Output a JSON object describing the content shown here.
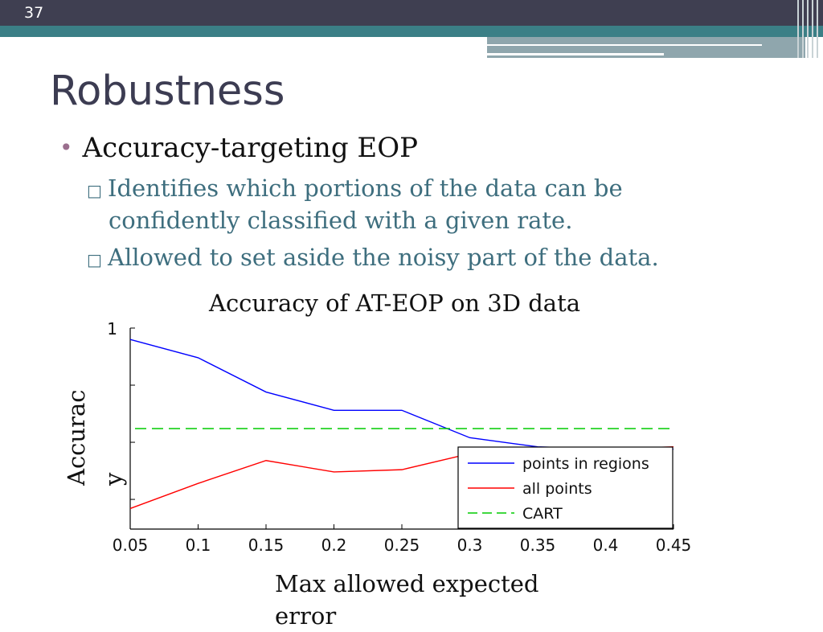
{
  "slide": {
    "number": "37",
    "title": "Robustness",
    "bullet": "Accuracy-targeting EOP",
    "subbullets": [
      "Identifies which portions of the data can be",
      "confidently classified with a given rate.",
      "Allowed to set aside the noisy part of the data."
    ]
  },
  "colors": {
    "banner": "#3f3f51",
    "accent_teal": "#3b7f86",
    "title": "#3c3c52",
    "subbullet": "#3e6e7e"
  },
  "chart_data": {
    "type": "line",
    "title": "Accuracy of AT-EOP on 3D data",
    "xlabel": "Max allowed expected error",
    "ylabel": "Accuracy",
    "x": [
      0.05,
      0.1,
      0.15,
      0.2,
      0.25,
      0.3,
      0.35,
      0.4,
      0.45
    ],
    "x_tick_labels": [
      "0.05",
      "0.1",
      "0.15",
      "0.2",
      "0.25",
      "0.3",
      "0.35",
      "0.4",
      "0.45"
    ],
    "y_tick_labels": [
      "1"
    ],
    "xlim": [
      0.05,
      0.45
    ],
    "series": [
      {
        "name": "points in regions",
        "color": "#0000ff",
        "style": "solid",
        "values": [
          0.95,
          0.87,
          0.72,
          0.64,
          0.64,
          0.52,
          0.48,
          0.47,
          0.47
        ]
      },
      {
        "name": "all points",
        "color": "#ff0000",
        "style": "solid",
        "values": [
          0.21,
          0.32,
          0.42,
          0.37,
          0.38,
          0.45,
          0.47,
          0.47,
          0.48
        ]
      },
      {
        "name": "CART",
        "color": "#00cc00",
        "style": "dashed",
        "values": [
          0.56,
          0.56,
          0.56,
          0.56,
          0.56,
          0.56,
          0.56,
          0.56,
          0.56
        ]
      }
    ],
    "legend": "lower-right",
    "grid": false
  }
}
